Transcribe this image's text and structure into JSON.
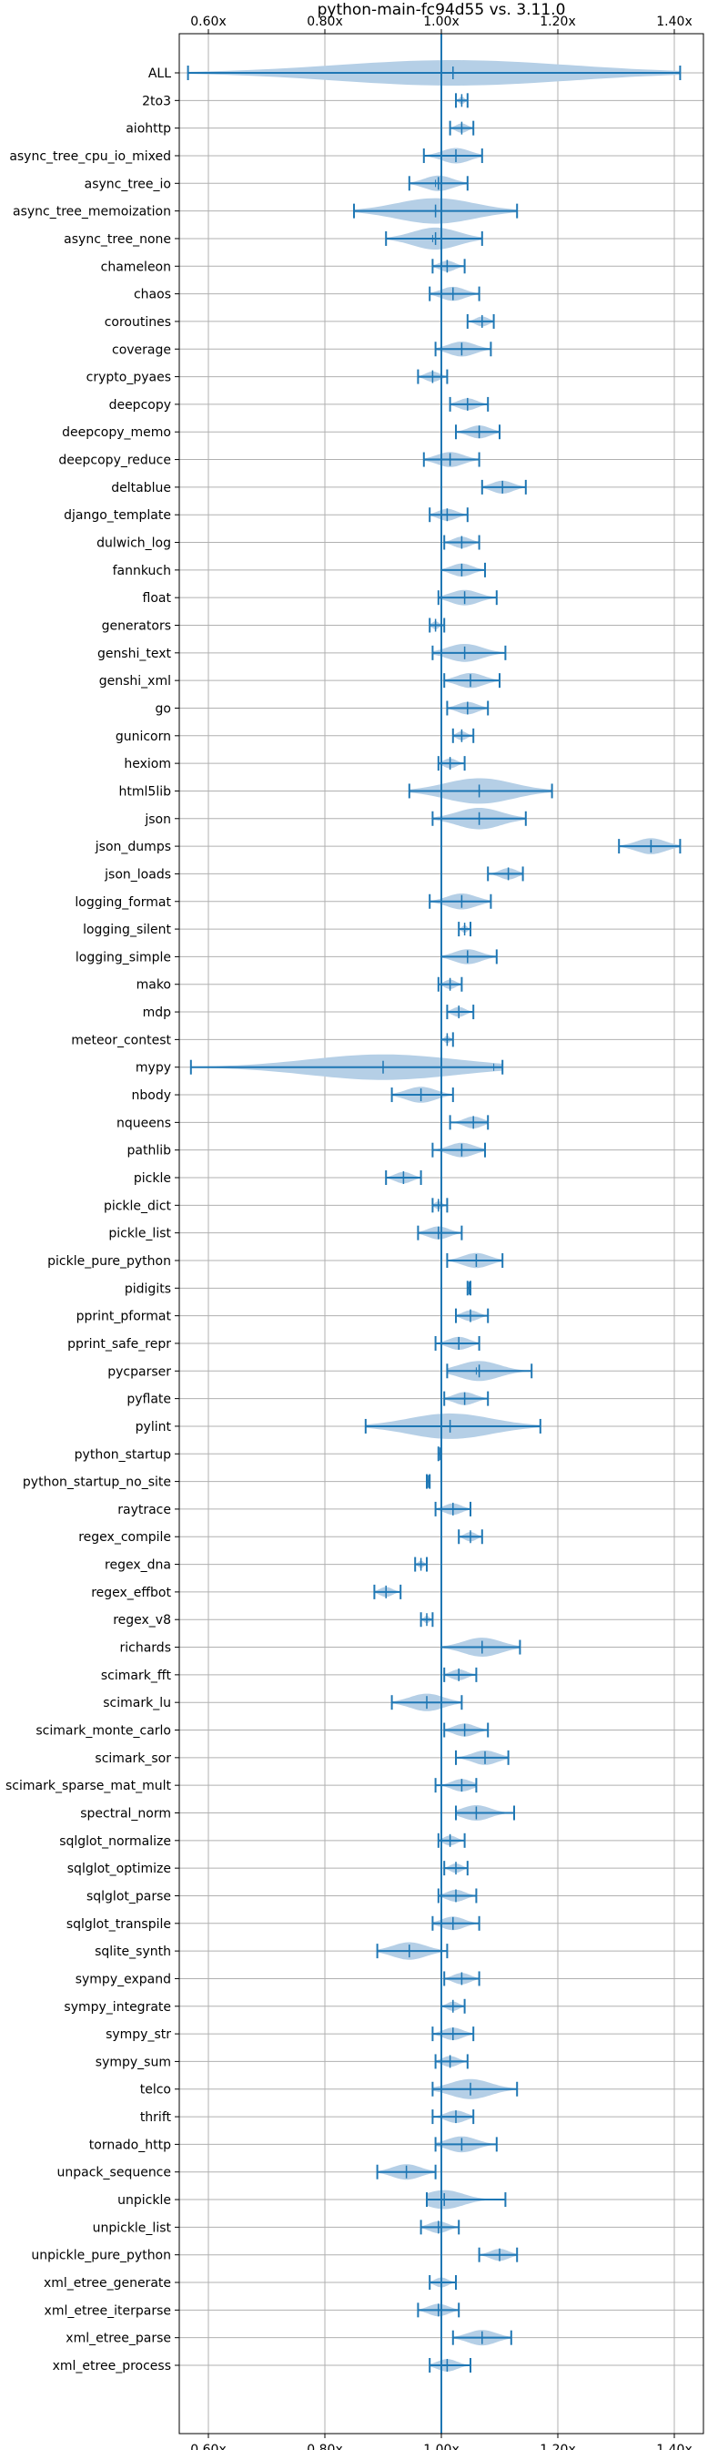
{
  "chart_data": {
    "type": "violin",
    "title": "python-main-fc94d55 vs. 3.11.0",
    "xlabel": "",
    "ylabel": "",
    "xlim": [
      0.55,
      1.45
    ],
    "x_ticks": [
      0.6,
      0.8,
      1.0,
      1.2,
      1.4
    ],
    "x_tick_labels": [
      "0.60x",
      "0.80x",
      "1.00x",
      "1.20x",
      "1.40x"
    ],
    "x_tick_positions": [
      "top",
      "bottom"
    ],
    "reference_line": 1.0,
    "grid": true,
    "colors": {
      "line": "#1f77b4",
      "violin_fill": "#b5cfe6",
      "grid": "#b0b0b0"
    },
    "benchmarks": [
      {
        "name": "ALL",
        "min": 0.565,
        "max": 1.41,
        "mean": 1.02,
        "median": 1.02
      },
      {
        "name": "2to3",
        "min": 1.025,
        "max": 1.045,
        "mean": 1.035,
        "median": 1.035
      },
      {
        "name": "aiohttp",
        "min": 1.015,
        "max": 1.055,
        "mean": 1.035,
        "median": 1.035
      },
      {
        "name": "async_tree_cpu_io_mixed",
        "min": 0.97,
        "max": 1.07,
        "mean": 1.025,
        "median": 1.025
      },
      {
        "name": "async_tree_io",
        "min": 0.945,
        "max": 1.045,
        "mean": 0.995,
        "median": 0.99
      },
      {
        "name": "async_tree_memoization",
        "min": 0.85,
        "max": 1.13,
        "mean": 0.99,
        "median": 0.99
      },
      {
        "name": "async_tree_none",
        "min": 0.905,
        "max": 1.07,
        "mean": 0.99,
        "median": 0.985
      },
      {
        "name": "chameleon",
        "min": 0.985,
        "max": 1.04,
        "mean": 1.01,
        "median": 1.01
      },
      {
        "name": "chaos",
        "min": 0.98,
        "max": 1.065,
        "mean": 1.02,
        "median": 1.02
      },
      {
        "name": "coroutines",
        "min": 1.045,
        "max": 1.09,
        "mean": 1.07,
        "median": 1.07
      },
      {
        "name": "coverage",
        "min": 0.99,
        "max": 1.085,
        "mean": 1.035,
        "median": 1.035
      },
      {
        "name": "crypto_pyaes",
        "min": 0.96,
        "max": 1.01,
        "mean": 0.985,
        "median": 0.985
      },
      {
        "name": "deepcopy",
        "min": 1.015,
        "max": 1.08,
        "mean": 1.045,
        "median": 1.045
      },
      {
        "name": "deepcopy_memo",
        "min": 1.025,
        "max": 1.1,
        "mean": 1.065,
        "median": 1.065
      },
      {
        "name": "deepcopy_reduce",
        "min": 0.97,
        "max": 1.065,
        "mean": 1.015,
        "median": 1.015
      },
      {
        "name": "deltablue",
        "min": 1.07,
        "max": 1.145,
        "mean": 1.105,
        "median": 1.105
      },
      {
        "name": "django_template",
        "min": 0.98,
        "max": 1.045,
        "mean": 1.01,
        "median": 1.01
      },
      {
        "name": "dulwich_log",
        "min": 1.005,
        "max": 1.065,
        "mean": 1.035,
        "median": 1.035
      },
      {
        "name": "fannkuch",
        "min": 1.0,
        "max": 1.075,
        "mean": 1.035,
        "median": 1.035
      },
      {
        "name": "float",
        "min": 0.995,
        "max": 1.095,
        "mean": 1.04,
        "median": 1.04
      },
      {
        "name": "generators",
        "min": 0.98,
        "max": 1.005,
        "mean": 0.99,
        "median": 0.99
      },
      {
        "name": "genshi_text",
        "min": 0.985,
        "max": 1.11,
        "mean": 1.04,
        "median": 1.04
      },
      {
        "name": "genshi_xml",
        "min": 1.005,
        "max": 1.1,
        "mean": 1.05,
        "median": 1.05
      },
      {
        "name": "go",
        "min": 1.01,
        "max": 1.08,
        "mean": 1.045,
        "median": 1.045
      },
      {
        "name": "gunicorn",
        "min": 1.02,
        "max": 1.055,
        "mean": 1.035,
        "median": 1.035
      },
      {
        "name": "hexiom",
        "min": 0.995,
        "max": 1.04,
        "mean": 1.015,
        "median": 1.015
      },
      {
        "name": "html5lib",
        "min": 0.945,
        "max": 1.19,
        "mean": 1.065,
        "median": 1.065
      },
      {
        "name": "json",
        "min": 0.985,
        "max": 1.145,
        "mean": 1.065,
        "median": 1.065
      },
      {
        "name": "json_dumps",
        "min": 1.305,
        "max": 1.41,
        "mean": 1.36,
        "median": 1.36
      },
      {
        "name": "json_loads",
        "min": 1.08,
        "max": 1.14,
        "mean": 1.115,
        "median": 1.115
      },
      {
        "name": "logging_format",
        "min": 0.98,
        "max": 1.085,
        "mean": 1.035,
        "median": 1.035
      },
      {
        "name": "logging_silent",
        "min": 1.03,
        "max": 1.05,
        "mean": 1.04,
        "median": 1.04
      },
      {
        "name": "logging_simple",
        "min": 1.0,
        "max": 1.095,
        "mean": 1.045,
        "median": 1.045
      },
      {
        "name": "mako",
        "min": 0.995,
        "max": 1.035,
        "mean": 1.015,
        "median": 1.015
      },
      {
        "name": "mdp",
        "min": 1.01,
        "max": 1.055,
        "mean": 1.03,
        "median": 1.03
      },
      {
        "name": "meteor_contest",
        "min": 1.0,
        "max": 1.02,
        "mean": 1.01,
        "median": 1.01
      },
      {
        "name": "mypy",
        "min": 0.57,
        "max": 1.105,
        "mean": 0.9,
        "median": 1.09
      },
      {
        "name": "nbody",
        "min": 0.915,
        "max": 1.02,
        "mean": 0.965,
        "median": 0.965
      },
      {
        "name": "nqueens",
        "min": 1.015,
        "max": 1.08,
        "mean": 1.055,
        "median": 1.055
      },
      {
        "name": "pathlib",
        "min": 0.985,
        "max": 1.075,
        "mean": 1.035,
        "median": 1.035
      },
      {
        "name": "pickle",
        "min": 0.905,
        "max": 0.965,
        "mean": 0.935,
        "median": 0.935
      },
      {
        "name": "pickle_dict",
        "min": 0.985,
        "max": 1.01,
        "mean": 0.995,
        "median": 0.995
      },
      {
        "name": "pickle_list",
        "min": 0.96,
        "max": 1.035,
        "mean": 0.995,
        "median": 0.995
      },
      {
        "name": "pickle_pure_python",
        "min": 1.01,
        "max": 1.105,
        "mean": 1.06,
        "median": 1.06
      },
      {
        "name": "pidigits",
        "min": 1.045,
        "max": 1.05,
        "mean": 1.048,
        "median": 1.048
      },
      {
        "name": "pprint_pformat",
        "min": 1.025,
        "max": 1.08,
        "mean": 1.05,
        "median": 1.05
      },
      {
        "name": "pprint_safe_repr",
        "min": 0.99,
        "max": 1.065,
        "mean": 1.03,
        "median": 1.03
      },
      {
        "name": "pycparser",
        "min": 1.01,
        "max": 1.155,
        "mean": 1.065,
        "median": 1.06
      },
      {
        "name": "pyflate",
        "min": 1.005,
        "max": 1.08,
        "mean": 1.04,
        "median": 1.04
      },
      {
        "name": "pylint",
        "min": 0.87,
        "max": 1.17,
        "mean": 1.015,
        "median": 1.015
      },
      {
        "name": "python_startup",
        "min": 0.995,
        "max": 1.0,
        "mean": 0.998,
        "median": 0.998
      },
      {
        "name": "python_startup_no_site",
        "min": 0.975,
        "max": 0.98,
        "mean": 0.978,
        "median": 0.978
      },
      {
        "name": "raytrace",
        "min": 0.99,
        "max": 1.05,
        "mean": 1.02,
        "median": 1.02
      },
      {
        "name": "regex_compile",
        "min": 1.03,
        "max": 1.07,
        "mean": 1.05,
        "median": 1.05
      },
      {
        "name": "regex_dna",
        "min": 0.955,
        "max": 0.975,
        "mean": 0.965,
        "median": 0.965
      },
      {
        "name": "regex_effbot",
        "min": 0.885,
        "max": 0.93,
        "mean": 0.905,
        "median": 0.905
      },
      {
        "name": "regex_v8",
        "min": 0.965,
        "max": 0.985,
        "mean": 0.975,
        "median": 0.975
      },
      {
        "name": "richards",
        "min": 1.0,
        "max": 1.135,
        "mean": 1.07,
        "median": 1.07
      },
      {
        "name": "scimark_fft",
        "min": 1.005,
        "max": 1.06,
        "mean": 1.03,
        "median": 1.03
      },
      {
        "name": "scimark_lu",
        "min": 0.915,
        "max": 1.035,
        "mean": 0.975,
        "median": 0.975
      },
      {
        "name": "scimark_monte_carlo",
        "min": 1.005,
        "max": 1.08,
        "mean": 1.04,
        "median": 1.04
      },
      {
        "name": "scimark_sor",
        "min": 1.025,
        "max": 1.115,
        "mean": 1.075,
        "median": 1.075
      },
      {
        "name": "scimark_sparse_mat_mult",
        "min": 0.99,
        "max": 1.06,
        "mean": 1.035,
        "median": 1.035
      },
      {
        "name": "spectral_norm",
        "min": 1.025,
        "max": 1.125,
        "mean": 1.06,
        "median": 1.06
      },
      {
        "name": "sqlglot_normalize",
        "min": 0.995,
        "max": 1.04,
        "mean": 1.015,
        "median": 1.015
      },
      {
        "name": "sqlglot_optimize",
        "min": 1.005,
        "max": 1.045,
        "mean": 1.025,
        "median": 1.025
      },
      {
        "name": "sqlglot_parse",
        "min": 0.995,
        "max": 1.06,
        "mean": 1.025,
        "median": 1.025
      },
      {
        "name": "sqlglot_transpile",
        "min": 0.985,
        "max": 1.065,
        "mean": 1.02,
        "median": 1.02
      },
      {
        "name": "sqlite_synth",
        "min": 0.89,
        "max": 1.01,
        "mean": 0.945,
        "median": 0.945
      },
      {
        "name": "sympy_expand",
        "min": 1.005,
        "max": 1.065,
        "mean": 1.035,
        "median": 1.035
      },
      {
        "name": "sympy_integrate",
        "min": 1.0,
        "max": 1.04,
        "mean": 1.02,
        "median": 1.02
      },
      {
        "name": "sympy_str",
        "min": 0.985,
        "max": 1.055,
        "mean": 1.02,
        "median": 1.02
      },
      {
        "name": "sympy_sum",
        "min": 0.99,
        "max": 1.045,
        "mean": 1.015,
        "median": 1.015
      },
      {
        "name": "telco",
        "min": 0.985,
        "max": 1.13,
        "mean": 1.05,
        "median": 1.05
      },
      {
        "name": "thrift",
        "min": 0.985,
        "max": 1.055,
        "mean": 1.025,
        "median": 1.025
      },
      {
        "name": "tornado_http",
        "min": 0.99,
        "max": 1.095,
        "mean": 1.035,
        "median": 1.035
      },
      {
        "name": "unpack_sequence",
        "min": 0.89,
        "max": 0.99,
        "mean": 0.94,
        "median": 0.94
      },
      {
        "name": "unpickle",
        "min": 0.975,
        "max": 1.11,
        "mean": 1.005,
        "median": 1.005
      },
      {
        "name": "unpickle_list",
        "min": 0.965,
        "max": 1.03,
        "mean": 0.995,
        "median": 0.995
      },
      {
        "name": "unpickle_pure_python",
        "min": 1.065,
        "max": 1.13,
        "mean": 1.1,
        "median": 1.1
      },
      {
        "name": "xml_etree_generate",
        "min": 0.98,
        "max": 1.025,
        "mean": 1.0,
        "median": 1.0
      },
      {
        "name": "xml_etree_iterparse",
        "min": 0.96,
        "max": 1.03,
        "mean": 0.995,
        "median": 0.995
      },
      {
        "name": "xml_etree_parse",
        "min": 1.02,
        "max": 1.12,
        "mean": 1.07,
        "median": 1.07
      },
      {
        "name": "xml_etree_process",
        "min": 0.98,
        "max": 1.05,
        "mean": 1.01,
        "median": 1.01
      }
    ]
  }
}
